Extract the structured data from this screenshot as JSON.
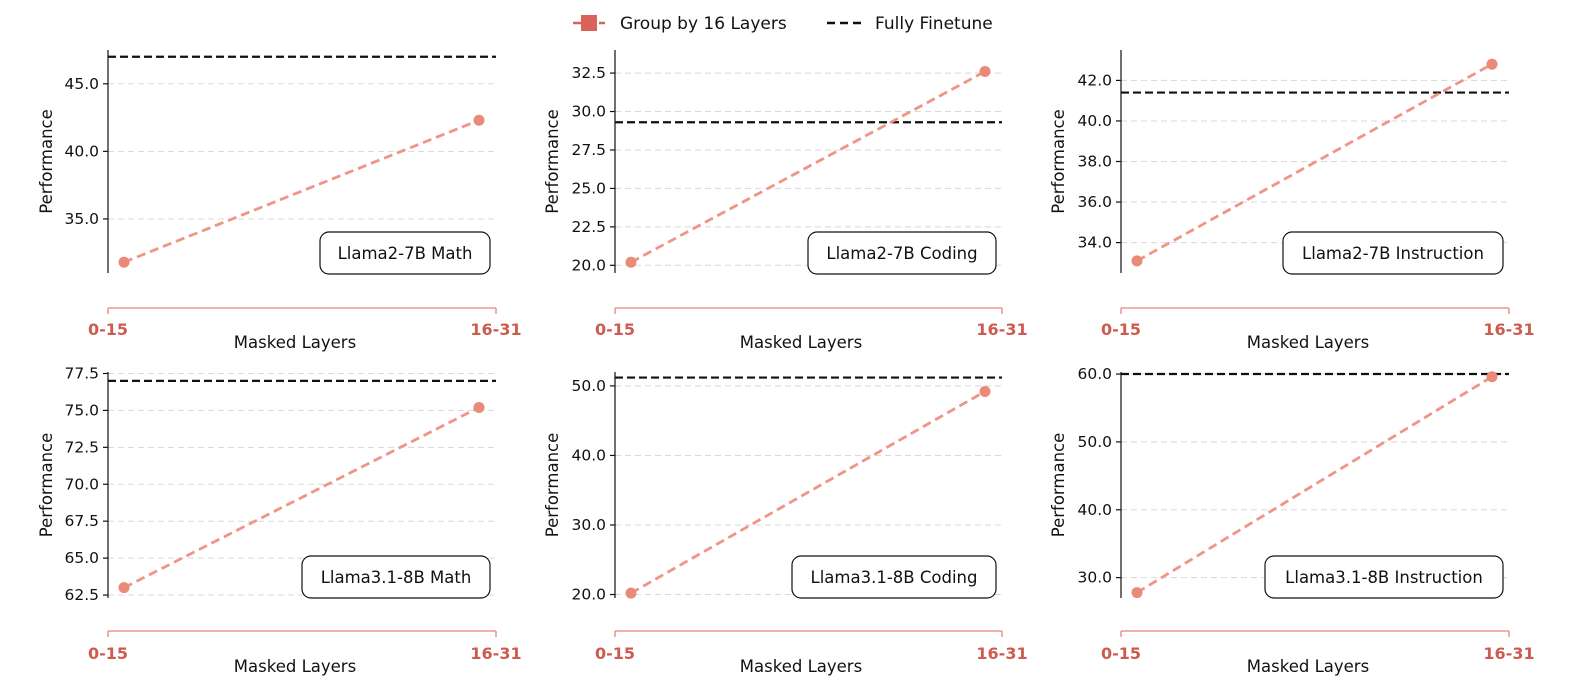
{
  "legend": {
    "position": "top-center",
    "items": [
      {
        "label": "Group by 16 Layers",
        "color": "#d9635a",
        "style": "dashed-square-marker"
      },
      {
        "label": "Fully Finetune",
        "color": "#111111",
        "style": "dashed"
      }
    ]
  },
  "colors": {
    "series_line": "#ef9585",
    "series_marker": "#ea8a78",
    "x_axis": "#e6847a",
    "x_tick_label": "#cd5c50",
    "baseline": "#111111",
    "grid": "#d6d8dc"
  },
  "chart_data": [
    {
      "type": "line",
      "annotation": "Llama2-7B Math",
      "xlabel": "Masked Layers",
      "ylabel": "Performance",
      "categories": [
        "0-15",
        "16-31"
      ],
      "series": [
        {
          "name": "Group by 16 Layers",
          "values": [
            31.8,
            42.3
          ]
        }
      ],
      "baseline": {
        "name": "Fully Finetune",
        "value": 47.0
      },
      "ylim": [
        31.0,
        47.5
      ],
      "yticks": [
        35.0,
        40.0,
        45.0
      ],
      "ytick_labels": [
        "35.0",
        "40.0",
        "45.0"
      ],
      "grid": "y"
    },
    {
      "type": "line",
      "annotation": "Llama2-7B Coding",
      "xlabel": "Masked Layers",
      "ylabel": "Performance",
      "categories": [
        "0-15",
        "16-31"
      ],
      "series": [
        {
          "name": "Group by 16 Layers",
          "values": [
            20.2,
            32.6
          ]
        }
      ],
      "baseline": {
        "name": "Fully Finetune",
        "value": 29.3
      },
      "ylim": [
        19.5,
        34.0
      ],
      "yticks": [
        20.0,
        22.5,
        25.0,
        27.5,
        30.0,
        32.5
      ],
      "ytick_labels": [
        "20.0",
        "22.5",
        "25.0",
        "27.5",
        "30.0",
        "32.5"
      ],
      "grid": "y"
    },
    {
      "type": "line",
      "annotation": "Llama2-7B Instruction",
      "xlabel": "Masked Layers",
      "ylabel": "Performance",
      "categories": [
        "0-15",
        "16-31"
      ],
      "series": [
        {
          "name": "Group by 16 Layers",
          "values": [
            33.1,
            42.8
          ]
        }
      ],
      "baseline": {
        "name": "Fully Finetune",
        "value": 41.4
      },
      "ylim": [
        32.5,
        43.5
      ],
      "yticks": [
        34.0,
        36.0,
        38.0,
        40.0,
        42.0
      ],
      "ytick_labels": [
        "34.0",
        "36.0",
        "38.0",
        "40.0",
        "42.0"
      ],
      "grid": "y"
    },
    {
      "type": "line",
      "annotation": "Llama3.1-8B Math",
      "xlabel": "Masked Layers",
      "ylabel": "Performance",
      "categories": [
        "0-15",
        "16-31"
      ],
      "series": [
        {
          "name": "Group by 16 Layers",
          "values": [
            63.0,
            75.2
          ]
        }
      ],
      "baseline": {
        "name": "Fully Finetune",
        "value": 77.0
      },
      "ylim": [
        62.3,
        77.6
      ],
      "yticks": [
        62.5,
        65.0,
        67.5,
        70.0,
        72.5,
        75.0,
        77.5
      ],
      "ytick_labels": [
        "62.5",
        "65.0",
        "67.5",
        "70.0",
        "72.5",
        "75.0",
        "77.5"
      ],
      "grid": "y"
    },
    {
      "type": "line",
      "annotation": "Llama3.1-8B Coding",
      "xlabel": "Masked Layers",
      "ylabel": "Performance",
      "categories": [
        "0-15",
        "16-31"
      ],
      "series": [
        {
          "name": "Group by 16 Layers",
          "values": [
            20.2,
            49.2
          ]
        }
      ],
      "baseline": {
        "name": "Fully Finetune",
        "value": 51.2
      },
      "ylim": [
        19.5,
        52.0
      ],
      "yticks": [
        20.0,
        30.0,
        40.0,
        50.0
      ],
      "ytick_labels": [
        "20.0",
        "30.0",
        "40.0",
        "50.0"
      ],
      "grid": "y"
    },
    {
      "type": "line",
      "annotation": "Llama3.1-8B Instruction",
      "xlabel": "Masked Layers",
      "ylabel": "Performance",
      "categories": [
        "0-15",
        "16-31"
      ],
      "series": [
        {
          "name": "Group by 16 Layers",
          "values": [
            27.8,
            59.6
          ]
        }
      ],
      "baseline": {
        "name": "Fully Finetune",
        "value": 60.0
      },
      "ylim": [
        27.0,
        60.3
      ],
      "yticks": [
        30.0,
        40.0,
        50.0,
        60.0
      ],
      "ytick_labels": [
        "30.0",
        "40.0",
        "50.0",
        "60.0"
      ],
      "grid": "y"
    }
  ]
}
